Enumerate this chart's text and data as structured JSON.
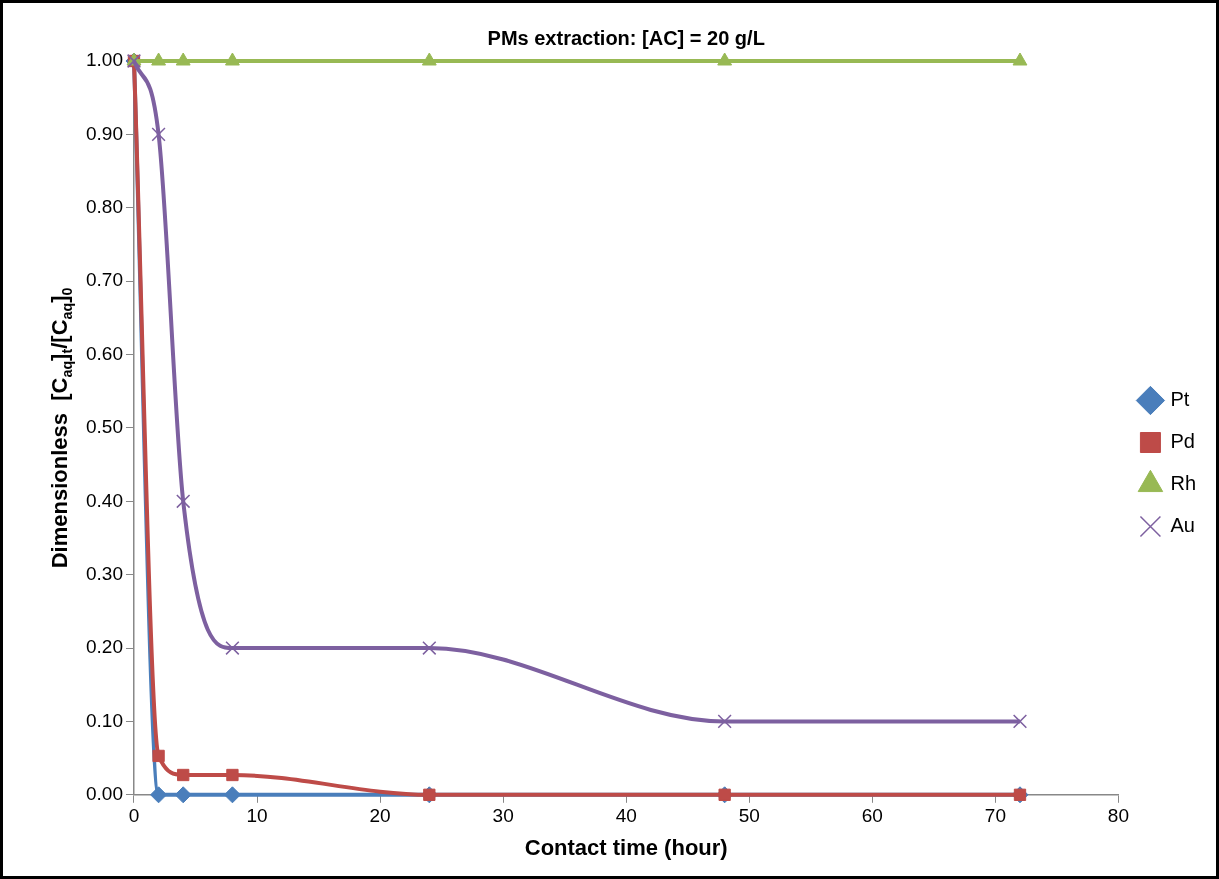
{
  "chart_data": {
    "type": "line",
    "title": "PMs extraction: [AC] = 20 g/L",
    "xlabel": "Contact time (hour)",
    "ylabel": "Dimensionless  [C$_{aq}$]$_{t}$/[C$_{aq}$]$_{0}$",
    "x": [
      0,
      2,
      4,
      8,
      24,
      48,
      72
    ],
    "series": [
      {
        "name": "Pt",
        "color": "#4a7ebb",
        "marker": "diamond",
        "values": [
          1,
          0,
          0,
          0,
          0,
          0,
          0
        ]
      },
      {
        "name": "Pd",
        "color": "#be4b48",
        "marker": "square",
        "values": [
          1,
          0.053,
          0.027,
          0.027,
          0,
          0,
          0
        ]
      },
      {
        "name": "Rh",
        "color": "#98b954",
        "marker": "triangle",
        "values": [
          1,
          1,
          1,
          1,
          1,
          1,
          1
        ]
      },
      {
        "name": "Au",
        "color": "#7d60a0",
        "marker": "cross",
        "values": [
          1,
          0.9,
          0.4,
          0.2,
          0.2,
          0.1,
          0.1
        ]
      }
    ],
    "xlim": [
      0,
      80
    ],
    "xticks": [
      0,
      10,
      20,
      30,
      40,
      50,
      60,
      70,
      80
    ],
    "ylim": [
      0,
      1
    ],
    "yticks": [
      {
        "value": 0,
        "label": "0.00"
      },
      {
        "value": 0.1,
        "label": "0.10"
      },
      {
        "value": 0.2,
        "label": "0.20"
      },
      {
        "value": 0.3,
        "label": "0.30"
      },
      {
        "value": 0.4,
        "label": "0.40"
      },
      {
        "value": 0.5,
        "label": "0.50"
      },
      {
        "value": 0.6,
        "label": "0.60"
      },
      {
        "value": 0.7,
        "label": "0.70"
      },
      {
        "value": 0.8,
        "label": "0.80"
      },
      {
        "value": 0.9,
        "label": "0.90"
      },
      {
        "value": 1,
        "label": "1.00"
      }
    ],
    "grid": false,
    "legend": "right",
    "line_style": "solid"
  }
}
